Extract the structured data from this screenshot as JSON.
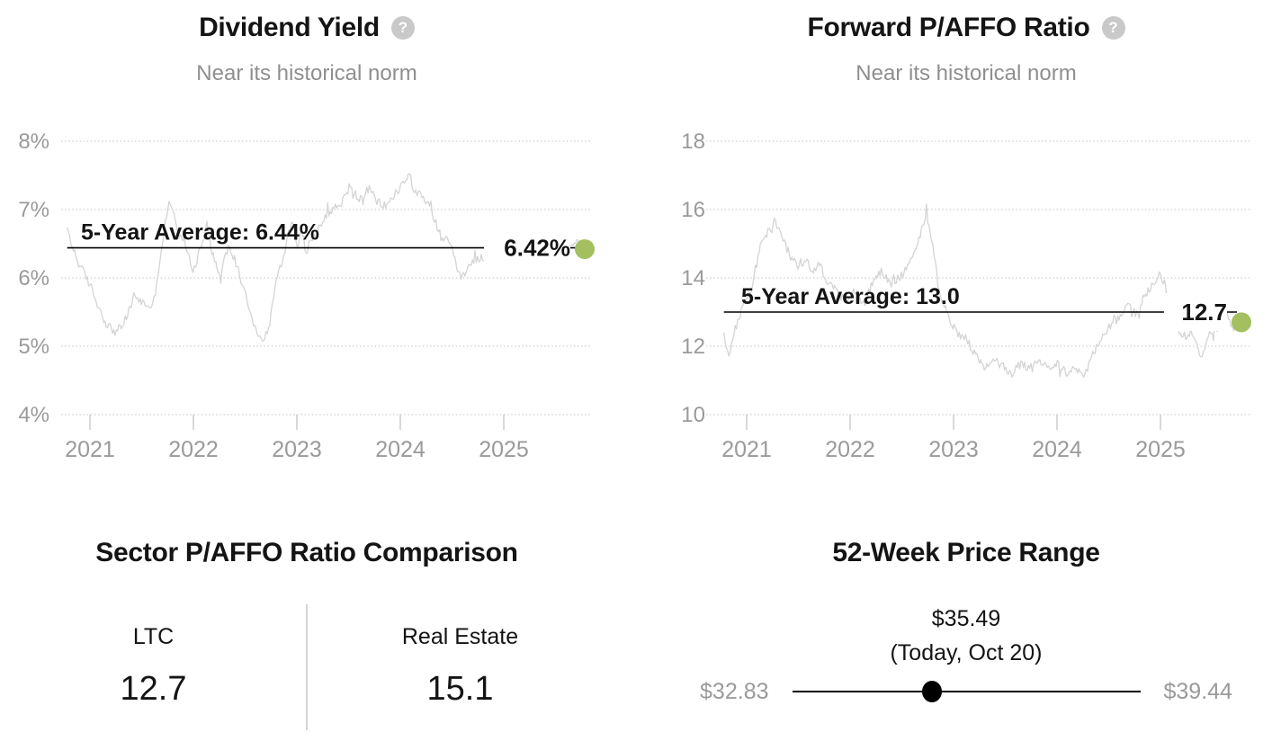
{
  "colors": {
    "accent_green": "#a3bf5f",
    "series_gray": "#d4d4d4",
    "grid_gray": "#cfcfcf",
    "axis_text_gray": "#9a9a9a",
    "text_black": "#141414"
  },
  "chart_data": [
    {
      "type": "line",
      "title": "Dividend Yield",
      "subtitle": "Near its historical norm",
      "help_icon": "?",
      "avg_label": "5-Year Average: 6.44%",
      "average_value": 6.44,
      "current_label": "6.42%",
      "current_value": 6.42,
      "y_ticks": [
        "8%",
        "7%",
        "6%",
        "5%",
        "4%"
      ],
      "y_tick_values": [
        8,
        7,
        6,
        5,
        4
      ],
      "x_ticks": [
        "2021",
        "2022",
        "2023",
        "2024",
        "2025"
      ],
      "ylim": [
        4,
        8
      ],
      "xlim": [
        2020.78,
        2025.85
      ],
      "grid": "dotted",
      "legend": "none",
      "series": [
        [
          2020.78,
          6.74
        ],
        [
          2020.82,
          6.5
        ],
        [
          2020.9,
          6.18
        ],
        [
          2021.0,
          5.9
        ],
        [
          2021.09,
          5.55
        ],
        [
          2021.17,
          5.3
        ],
        [
          2021.26,
          5.2
        ],
        [
          2021.35,
          5.4
        ],
        [
          2021.43,
          5.75
        ],
        [
          2021.52,
          5.62
        ],
        [
          2021.61,
          5.58
        ],
        [
          2021.65,
          6.0
        ],
        [
          2021.7,
          6.5
        ],
        [
          2021.74,
          6.9
        ],
        [
          2021.78,
          7.15
        ],
        [
          2021.83,
          6.75
        ],
        [
          2021.91,
          6.55
        ],
        [
          2022.0,
          6.1
        ],
        [
          2022.09,
          6.55
        ],
        [
          2022.13,
          6.85
        ],
        [
          2022.17,
          6.45
        ],
        [
          2022.22,
          6.2
        ],
        [
          2022.26,
          5.95
        ],
        [
          2022.3,
          6.3
        ],
        [
          2022.35,
          6.45
        ],
        [
          2022.43,
          6.15
        ],
        [
          2022.52,
          5.7
        ],
        [
          2022.57,
          5.4
        ],
        [
          2022.61,
          5.2
        ],
        [
          2022.65,
          5.08
        ],
        [
          2022.7,
          5.15
        ],
        [
          2022.74,
          5.35
        ],
        [
          2022.78,
          5.8
        ],
        [
          2022.83,
          6.1
        ],
        [
          2022.87,
          6.3
        ],
        [
          2022.91,
          6.6
        ],
        [
          2022.96,
          6.85
        ],
        [
          2023.0,
          6.45
        ],
        [
          2023.04,
          6.7
        ],
        [
          2023.09,
          6.4
        ],
        [
          2023.17,
          6.6
        ],
        [
          2023.26,
          6.9
        ],
        [
          2023.35,
          7.0
        ],
        [
          2023.43,
          7.1
        ],
        [
          2023.52,
          7.3
        ],
        [
          2023.61,
          7.15
        ],
        [
          2023.7,
          7.3
        ],
        [
          2023.78,
          7.1
        ],
        [
          2023.87,
          7.05
        ],
        [
          2023.96,
          7.25
        ],
        [
          2024.04,
          7.4
        ],
        [
          2024.09,
          7.52
        ],
        [
          2024.13,
          7.3
        ],
        [
          2024.22,
          7.15
        ],
        [
          2024.3,
          7.0
        ],
        [
          2024.39,
          6.6
        ],
        [
          2024.48,
          6.5
        ],
        [
          2024.57,
          6.0
        ],
        [
          2024.65,
          6.1
        ],
        [
          2024.74,
          6.3
        ],
        [
          2024.83,
          6.25
        ],
        [
          2024.91,
          6.4
        ],
        [
          2025.0,
          6.55
        ],
        [
          2025.09,
          6.5
        ],
        [
          2025.17,
          6.6
        ],
        [
          2025.26,
          6.5
        ],
        [
          2025.35,
          6.55
        ],
        [
          2025.43,
          6.45
        ],
        [
          2025.52,
          6.3
        ],
        [
          2025.61,
          6.35
        ],
        [
          2025.7,
          6.5
        ],
        [
          2025.78,
          6.42
        ]
      ]
    },
    {
      "type": "line",
      "title": "Forward P/AFFO Ratio",
      "subtitle": "Near its historical norm",
      "help_icon": "?",
      "avg_label": "5-Year Average: 13.0",
      "average_value": 13.0,
      "current_label": "12.7",
      "current_value": 12.7,
      "y_ticks": [
        "18",
        "16",
        "14",
        "12",
        "10"
      ],
      "y_tick_values": [
        18,
        16,
        14,
        12,
        10
      ],
      "x_ticks": [
        "2021",
        "2022",
        "2023",
        "2024",
        "2025"
      ],
      "ylim": [
        10,
        18
      ],
      "xlim": [
        2020.78,
        2025.85
      ],
      "grid": "dotted",
      "legend": "none",
      "series": [
        [
          2020.78,
          12.4
        ],
        [
          2020.82,
          11.7
        ],
        [
          2020.87,
          12.3
        ],
        [
          2020.96,
          13.2
        ],
        [
          2021.04,
          13.6
        ],
        [
          2021.13,
          14.9
        ],
        [
          2021.22,
          15.4
        ],
        [
          2021.26,
          15.7
        ],
        [
          2021.3,
          15.5
        ],
        [
          2021.35,
          15.1
        ],
        [
          2021.43,
          14.6
        ],
        [
          2021.52,
          14.3
        ],
        [
          2021.57,
          14.5
        ],
        [
          2021.65,
          14.2
        ],
        [
          2021.7,
          14.4
        ],
        [
          2021.78,
          13.9
        ],
        [
          2021.87,
          13.6
        ],
        [
          2021.96,
          13.3
        ],
        [
          2022.04,
          13.7
        ],
        [
          2022.13,
          13.2
        ],
        [
          2022.22,
          13.9
        ],
        [
          2022.3,
          14.2
        ],
        [
          2022.39,
          13.8
        ],
        [
          2022.48,
          14.0
        ],
        [
          2022.57,
          14.4
        ],
        [
          2022.65,
          15.0
        ],
        [
          2022.7,
          15.5
        ],
        [
          2022.74,
          15.9
        ],
        [
          2022.78,
          15.3
        ],
        [
          2022.83,
          14.3
        ],
        [
          2022.87,
          13.4
        ],
        [
          2022.96,
          12.8
        ],
        [
          2023.04,
          12.4
        ],
        [
          2023.13,
          12.2
        ],
        [
          2023.22,
          11.7
        ],
        [
          2023.3,
          11.3
        ],
        [
          2023.39,
          11.6
        ],
        [
          2023.48,
          11.4
        ],
        [
          2023.57,
          11.2
        ],
        [
          2023.65,
          11.5
        ],
        [
          2023.74,
          11.3
        ],
        [
          2023.83,
          11.6
        ],
        [
          2023.91,
          11.3
        ],
        [
          2024.0,
          11.5
        ],
        [
          2024.09,
          11.2
        ],
        [
          2024.17,
          11.4
        ],
        [
          2024.26,
          11.1
        ],
        [
          2024.35,
          11.8
        ],
        [
          2024.43,
          12.2
        ],
        [
          2024.52,
          12.6
        ],
        [
          2024.61,
          12.9
        ],
        [
          2024.7,
          13.2
        ],
        [
          2024.78,
          12.9
        ],
        [
          2024.83,
          13.4
        ],
        [
          2024.91,
          13.7
        ],
        [
          2025.0,
          14.1
        ],
        [
          2025.04,
          13.8
        ],
        [
          2025.09,
          13.0
        ],
        [
          2025.17,
          12.4
        ],
        [
          2025.26,
          12.3
        ],
        [
          2025.3,
          12.5
        ],
        [
          2025.39,
          11.7
        ],
        [
          2025.48,
          12.4
        ],
        [
          2025.57,
          12.6
        ],
        [
          2025.65,
          12.9
        ],
        [
          2025.7,
          12.5
        ],
        [
          2025.78,
          12.7
        ]
      ]
    }
  ],
  "sector_comparison": {
    "title": "Sector P/AFFO Ratio Comparison",
    "columns": [
      {
        "label": "LTC",
        "value": "12.7"
      },
      {
        "label": "Real Estate",
        "value": "15.1"
      }
    ]
  },
  "price_range": {
    "title": "52-Week Price Range",
    "current": "$35.49",
    "current_note": "(Today, Oct 20)",
    "low": "$32.83",
    "high": "$39.44",
    "position_pct": 40.2
  }
}
